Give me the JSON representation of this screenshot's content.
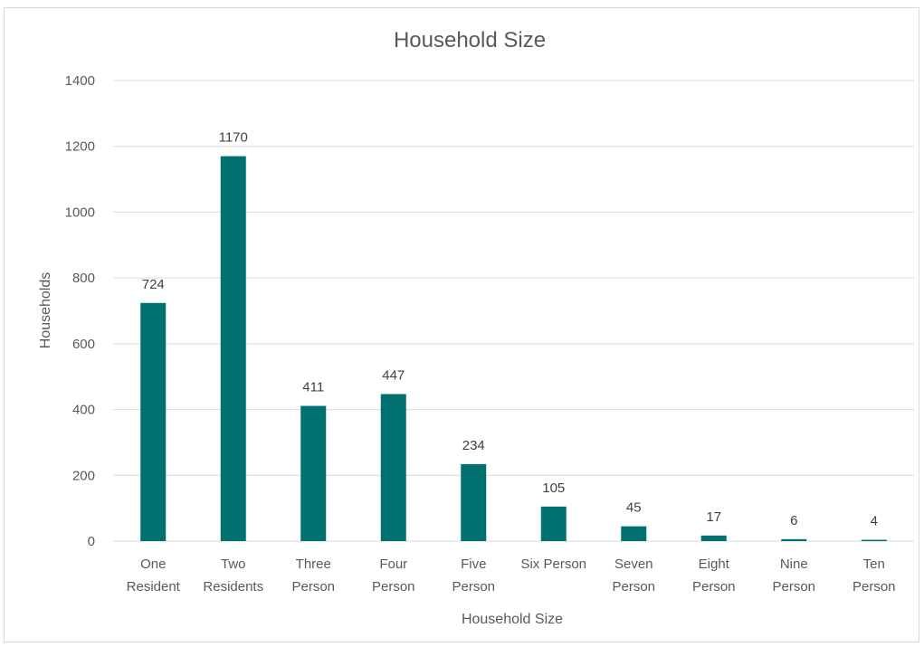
{
  "chart_data": {
    "type": "bar",
    "title": "Household Size",
    "xlabel": "Household Size",
    "ylabel": "Households",
    "categories": [
      [
        "One",
        "Resident"
      ],
      [
        "Two",
        "Residents"
      ],
      [
        "Three",
        "Person"
      ],
      [
        "Four",
        "Person"
      ],
      [
        "Five",
        "Person"
      ],
      [
        "Six Person"
      ],
      [
        "Seven",
        "Person"
      ],
      [
        "Eight",
        "Person"
      ],
      [
        "Nine",
        "Person"
      ],
      [
        "Ten",
        "Person"
      ]
    ],
    "values": [
      724,
      1170,
      411,
      447,
      234,
      105,
      45,
      17,
      6,
      4
    ],
    "data_labels": [
      "724",
      "1170",
      "411",
      "447",
      "234",
      "105",
      "45",
      "17",
      "6",
      "4"
    ],
    "ylim": [
      0,
      1400
    ],
    "yticks": [
      0,
      200,
      400,
      600,
      800,
      1000,
      1200,
      1400
    ],
    "grid": true,
    "legend": "none",
    "bar_color": "#007070"
  }
}
